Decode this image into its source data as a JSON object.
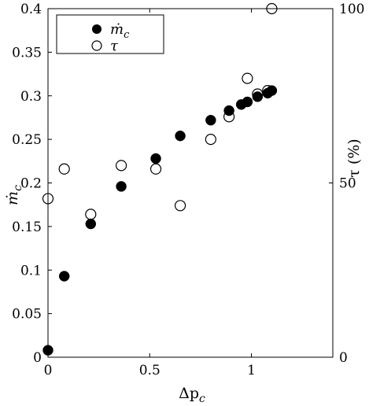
{
  "chart_data": {
    "type": "scatter",
    "xlabel": "Δp",
    "xlabel_sub": "c",
    "ylabel_left": "ṁ",
    "ylabel_left_sub": "c",
    "ylabel_right": "τ (%)",
    "xlim": [
      0,
      1.4
    ],
    "ylim_left": [
      0,
      0.4
    ],
    "ylim_right": [
      0,
      100
    ],
    "x_ticks": [
      0,
      0.5,
      1
    ],
    "x_tick_labels": [
      "0",
      "0.5",
      "1"
    ],
    "y_left_ticks": [
      0,
      0.05,
      0.1,
      0.15,
      0.2,
      0.25,
      0.3,
      0.35,
      0.4
    ],
    "y_left_tick_labels": [
      "0",
      "0.05",
      "0.1",
      "0.15",
      "0.2",
      "0.25",
      "0.3",
      "0.35",
      "0.4"
    ],
    "y_right_ticks": [
      0,
      50,
      100
    ],
    "y_right_tick_labels": [
      "0",
      "50",
      "100"
    ],
    "legend_position": "top-left",
    "grid": false,
    "series": [
      {
        "name": "ṁ",
        "name_sub": "c",
        "marker": "filled-circle",
        "axis": "left",
        "points": [
          {
            "x": 0.0,
            "y": 0.008
          },
          {
            "x": 0.08,
            "y": 0.093
          },
          {
            "x": 0.21,
            "y": 0.153
          },
          {
            "x": 0.36,
            "y": 0.196
          },
          {
            "x": 0.53,
            "y": 0.228
          },
          {
            "x": 0.65,
            "y": 0.254
          },
          {
            "x": 0.8,
            "y": 0.272
          },
          {
            "x": 0.89,
            "y": 0.283
          },
          {
            "x": 0.95,
            "y": 0.29
          },
          {
            "x": 0.98,
            "y": 0.293
          },
          {
            "x": 1.03,
            "y": 0.299
          },
          {
            "x": 1.08,
            "y": 0.303
          },
          {
            "x": 1.1,
            "y": 0.306
          }
        ]
      },
      {
        "name": "τ",
        "marker": "open-circle",
        "axis": "right",
        "points": [
          {
            "x": 0.0,
            "y": 45.5
          },
          {
            "x": 0.08,
            "y": 54
          },
          {
            "x": 0.21,
            "y": 41
          },
          {
            "x": 0.36,
            "y": 55
          },
          {
            "x": 0.53,
            "y": 54
          },
          {
            "x": 0.65,
            "y": 43.5
          },
          {
            "x": 0.8,
            "y": 62.5
          },
          {
            "x": 0.89,
            "y": 69
          },
          {
            "x": 0.98,
            "y": 80
          },
          {
            "x": 1.03,
            "y": 75.5
          },
          {
            "x": 1.08,
            "y": 76.5
          },
          {
            "x": 1.1,
            "y": 100
          }
        ]
      }
    ]
  }
}
